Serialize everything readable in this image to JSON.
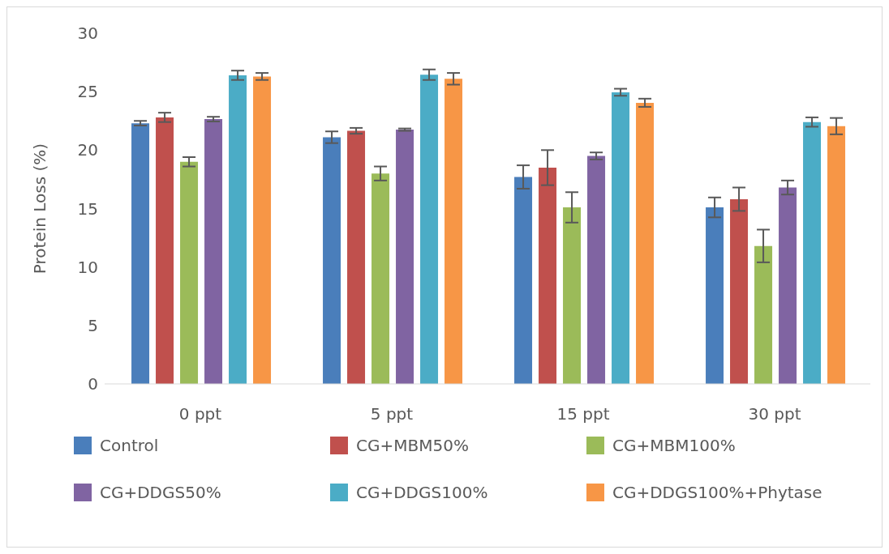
{
  "chart_data": {
    "type": "bar",
    "ylabel": "Protein Loss (%)",
    "categories": [
      "0 ppt",
      "5 ppt",
      "15 ppt",
      "30 ppt"
    ],
    "series": [
      {
        "name": "Control",
        "color": "#4a7ebb",
        "values": [
          22.3,
          21.1,
          17.7,
          15.1
        ],
        "errors": [
          0.2,
          0.5,
          1.0,
          0.85
        ]
      },
      {
        "name": "CG+MBM50%",
        "color": "#c0504d",
        "values": [
          22.8,
          21.65,
          18.5,
          15.8
        ],
        "errors": [
          0.4,
          0.25,
          1.5,
          1.0
        ]
      },
      {
        "name": "CG+MBM100%",
        "color": "#9bbb59",
        "values": [
          19.0,
          18.0,
          15.1,
          11.8
        ],
        "errors": [
          0.4,
          0.6,
          1.3,
          1.4
        ]
      },
      {
        "name": "CG+DDGS50%",
        "color": "#8064a2",
        "values": [
          22.65,
          21.75,
          19.5,
          16.8
        ],
        "errors": [
          0.2,
          0.1,
          0.3,
          0.6
        ]
      },
      {
        "name": "CG+DDGS100%",
        "color": "#4bacc6",
        "values": [
          26.4,
          26.45,
          24.95,
          22.4
        ],
        "errors": [
          0.4,
          0.45,
          0.3,
          0.4
        ]
      },
      {
        "name": "CG+DDGS100%+Phytase",
        "color": "#f79646",
        "values": [
          26.3,
          26.1,
          24.05,
          22.05
        ],
        "errors": [
          0.3,
          0.5,
          0.35,
          0.7
        ]
      }
    ],
    "ylim": [
      0,
      30
    ],
    "yticks": [
      0,
      5,
      10,
      15,
      20,
      25,
      30
    ],
    "grid": false,
    "legend": "bottom"
  }
}
